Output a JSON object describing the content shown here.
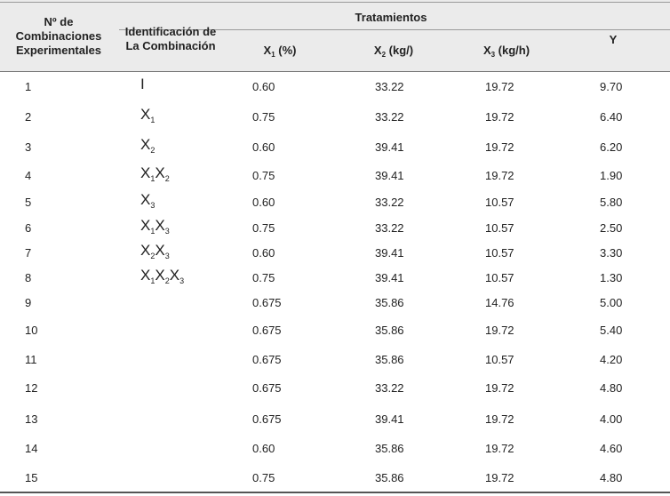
{
  "header": {
    "col_num": [
      "Nº de",
      "Combinaciones",
      "Experimentales"
    ],
    "col_ident": [
      "Identificación de",
      "La Combinación"
    ],
    "group_label": "Tratamientos",
    "x1": {
      "var": "X",
      "sub": "1",
      "unit": " (%)"
    },
    "x2": {
      "var": "X",
      "sub": "2",
      "unit": " (kg/)"
    },
    "x3": {
      "var": "X",
      "sub": "3",
      "unit": " (kg/h)"
    },
    "y": "Y"
  },
  "rows": [
    {
      "n": "1",
      "ident": [
        {
          "t": "I",
          "s": ""
        }
      ],
      "x1": "0.60",
      "x2": "33.22",
      "x3": "19.72",
      "y": "9.70"
    },
    {
      "n": "2",
      "ident": [
        {
          "t": "X",
          "s": "1"
        }
      ],
      "x1": "0.75",
      "x2": "33.22",
      "x3": "19.72",
      "y": "6.40"
    },
    {
      "n": "3",
      "ident": [
        {
          "t": "X",
          "s": "2"
        }
      ],
      "x1": "0.60",
      "x2": "39.41",
      "x3": "19.72",
      "y": "6.20"
    },
    {
      "n": "4",
      "ident": [
        {
          "t": "X",
          "s": "1"
        },
        {
          "t": "X",
          "s": "2"
        }
      ],
      "x1": "0.75",
      "x2": "39.41",
      "x3": "19.72",
      "y": "1.90"
    },
    {
      "n": "5",
      "ident": [
        {
          "t": "X",
          "s": "3"
        }
      ],
      "x1": "0.60",
      "x2": "33.22",
      "x3": "10.57",
      "y": "5.80"
    },
    {
      "n": "6",
      "ident": [
        {
          "t": "X",
          "s": "1"
        },
        {
          "t": "X",
          "s": "3"
        }
      ],
      "x1": "0.75",
      "x2": "33.22",
      "x3": "10.57",
      "y": "2.50"
    },
    {
      "n": "7",
      "ident": [
        {
          "t": "X",
          "s": "2"
        },
        {
          "t": "X",
          "s": "3"
        }
      ],
      "x1": "0.60",
      "x2": "39.41",
      "x3": "10.57",
      "y": "3.30"
    },
    {
      "n": "8",
      "ident": [
        {
          "t": "X",
          "s": "1"
        },
        {
          "t": "X",
          "s": "2"
        },
        {
          "t": "X",
          "s": "3"
        }
      ],
      "x1": "0.75",
      "x2": "39.41",
      "x3": "10.57",
      "y": "1.30"
    },
    {
      "n": "9",
      "ident": [],
      "x1": "0.675",
      "x2": "35.86",
      "x3": "14.76",
      "y": "5.00"
    },
    {
      "n": "10",
      "ident": [],
      "x1": "0.675",
      "x2": "35.86",
      "x3": "19.72",
      "y": "5.40"
    },
    {
      "n": "11",
      "ident": [],
      "x1": "0.675",
      "x2": "35.86",
      "x3": "10.57",
      "y": "4.20"
    },
    {
      "n": "12",
      "ident": [],
      "x1": "0.675",
      "x2": "33.22",
      "x3": "19.72",
      "y": "4.80"
    },
    {
      "n": "13",
      "ident": [],
      "x1": "0.675",
      "x2": "39.41",
      "x3": "19.72",
      "y": "4.00"
    },
    {
      "n": "14",
      "ident": [],
      "x1": "0.60",
      "x2": "35.86",
      "x3": "19.72",
      "y": "4.60"
    },
    {
      "n": "15",
      "ident": [],
      "x1": "0.75",
      "x2": "35.86",
      "x3": "19.72",
      "y": "4.80"
    }
  ]
}
